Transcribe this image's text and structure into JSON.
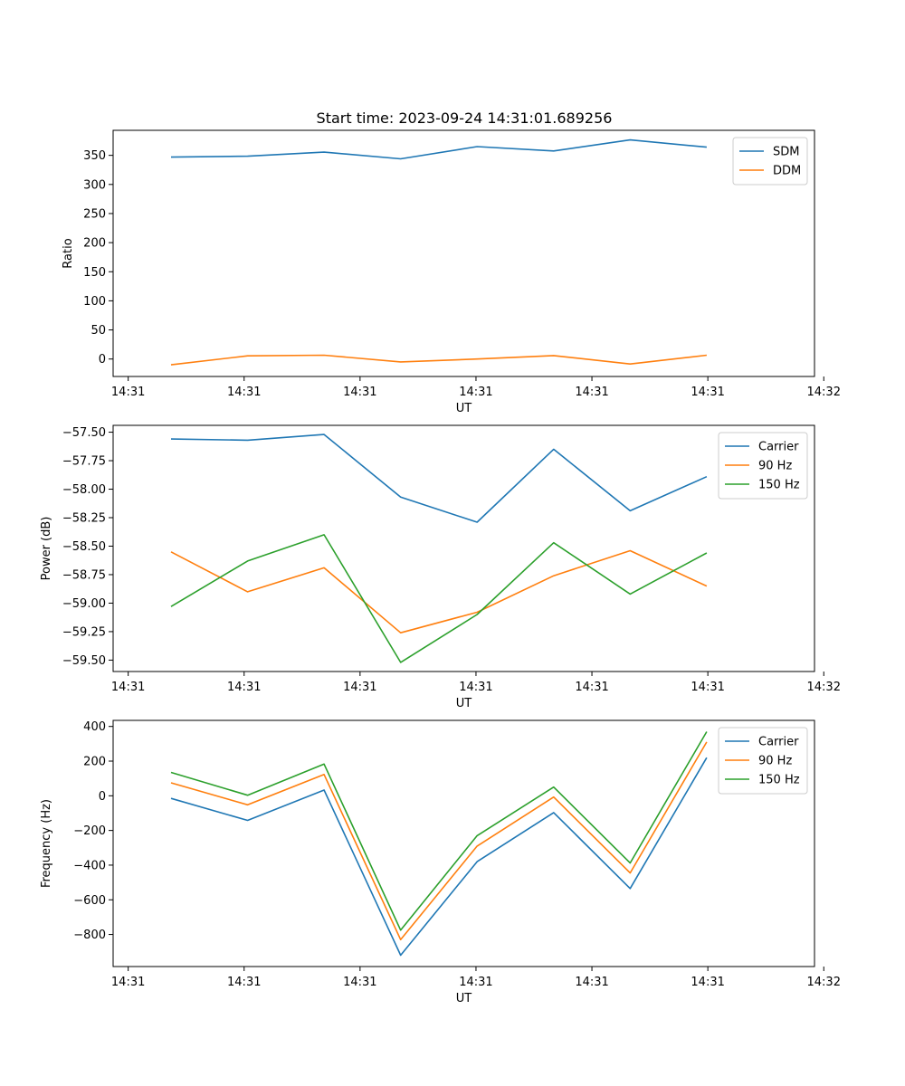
{
  "title": "Start time: 2023-09-24 14:31:01.689256",
  "colors": {
    "blue": "#1f77b4",
    "orange": "#ff7f0e",
    "green": "#2ca02c"
  },
  "chart_data": [
    {
      "type": "line",
      "title": "Start time: 2023-09-24 14:31:01.689256",
      "xlabel": "UT",
      "ylabel": "Ratio",
      "x": [
        0.5,
        1.16,
        1.82,
        2.48,
        3.14,
        3.8,
        4.46,
        5.12
      ],
      "xlim": [
        0,
        6.05
      ],
      "xticks": [
        0.13,
        1.13,
        2.13,
        3.13,
        4.13,
        5.13,
        6.13
      ],
      "xtick_labels": [
        "14:31",
        "14:31",
        "14:31",
        "14:31",
        "14:31",
        "14:31",
        "14:32"
      ],
      "ylim": [
        -30,
        393
      ],
      "yticks": [
        0,
        50,
        100,
        150,
        200,
        250,
        300,
        350
      ],
      "ytick_labels": [
        "0",
        "50",
        "100",
        "150",
        "200",
        "250",
        "300",
        "350"
      ],
      "legend": "upper right",
      "series": [
        {
          "name": "SDM",
          "color": "#1f77b4",
          "values": [
            347,
            348.5,
            355.5,
            344,
            365,
            357.5,
            376.5,
            364
          ]
        },
        {
          "name": "DDM",
          "color": "#ff7f0e",
          "values": [
            -10,
            5.5,
            6.5,
            -5,
            0,
            6,
            -8.5,
            6.5
          ]
        }
      ]
    },
    {
      "type": "line",
      "title": "",
      "xlabel": "UT",
      "ylabel": "Power (dB)",
      "x": [
        0.5,
        1.16,
        1.82,
        2.48,
        3.14,
        3.8,
        4.46,
        5.12
      ],
      "xlim": [
        0,
        6.05
      ],
      "xticks": [
        0.13,
        1.13,
        2.13,
        3.13,
        4.13,
        5.13,
        6.13
      ],
      "xtick_labels": [
        "14:31",
        "14:31",
        "14:31",
        "14:31",
        "14:31",
        "14:31",
        "14:32"
      ],
      "ylim": [
        -59.6,
        -57.44
      ],
      "yticks": [
        -59.5,
        -59.25,
        -59.0,
        -58.75,
        -58.5,
        -58.25,
        -58.0,
        -57.75,
        -57.5
      ],
      "ytick_labels": [
        "−59.50",
        "−59.25",
        "−59.00",
        "−58.75",
        "−58.50",
        "−58.25",
        "−58.00",
        "−57.75",
        "−57.50"
      ],
      "legend": "upper right",
      "series": [
        {
          "name": "Carrier",
          "color": "#1f77b4",
          "values": [
            -57.56,
            -57.57,
            -57.52,
            -58.07,
            -58.29,
            -57.65,
            -58.19,
            -57.89
          ]
        },
        {
          "name": "90 Hz",
          "color": "#ff7f0e",
          "values": [
            -58.55,
            -58.9,
            -58.69,
            -59.26,
            -59.08,
            -58.76,
            -58.54,
            -58.85
          ]
        },
        {
          "name": "150 Hz",
          "color": "#2ca02c",
          "values": [
            -59.03,
            -58.63,
            -58.4,
            -59.52,
            -59.1,
            -58.47,
            -58.92,
            -58.56
          ]
        }
      ]
    },
    {
      "type": "line",
      "title": "",
      "xlabel": "UT",
      "ylabel": "Frequency (Hz)",
      "x": [
        0.5,
        1.16,
        1.82,
        2.48,
        3.14,
        3.8,
        4.46,
        5.12
      ],
      "xlim": [
        0,
        6.05
      ],
      "xticks": [
        0.13,
        1.13,
        2.13,
        3.13,
        4.13,
        5.13,
        6.13
      ],
      "xtick_labels": [
        "14:31",
        "14:31",
        "14:31",
        "14:31",
        "14:31",
        "14:31",
        "14:32"
      ],
      "ylim": [
        -985,
        435
      ],
      "yticks": [
        -800,
        -600,
        -400,
        -200,
        0,
        200,
        400
      ],
      "ytick_labels": [
        "−800",
        "−600",
        "−400",
        "−200",
        "0",
        "200",
        "400"
      ],
      "legend": "upper right",
      "series": [
        {
          "name": "Carrier",
          "color": "#1f77b4",
          "values": [
            -15,
            -142,
            33,
            -920,
            -380,
            -97,
            -535,
            220
          ]
        },
        {
          "name": "90 Hz",
          "color": "#ff7f0e",
          "values": [
            75,
            -52,
            123,
            -830,
            -290,
            -7,
            -445,
            310
          ]
        },
        {
          "name": "150 Hz",
          "color": "#2ca02c",
          "values": [
            135,
            3,
            183,
            -775,
            -230,
            50,
            -388,
            370
          ]
        }
      ]
    }
  ]
}
